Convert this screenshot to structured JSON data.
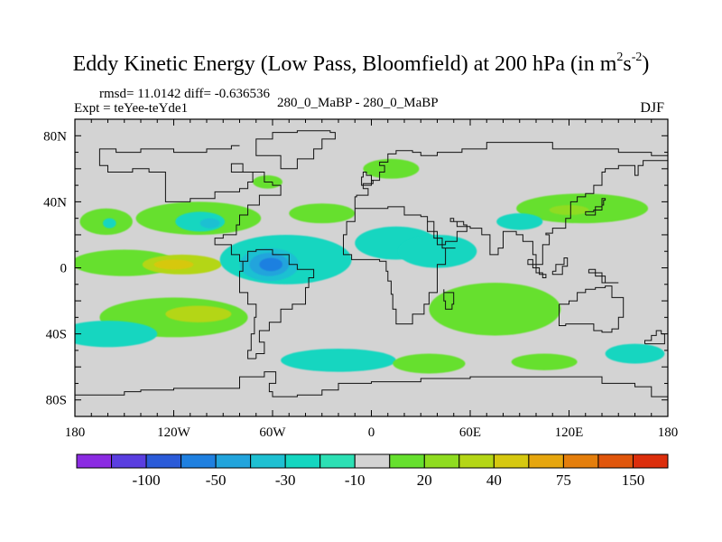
{
  "chart_data": {
    "type": "heatmap",
    "title_main": "Eddy Kinetic Energy (Low Pass, Bloomfield) at 200 hPa (in m",
    "title_unit_sup1": "2",
    "title_unit_mid": "s",
    "title_unit_sup2": "-2",
    "title_tail": ")",
    "rmsd_text": "rmsd= 11.0142 diff= -0.636536",
    "expt_text": "Expt = teYee-teYde1",
    "center_text": "280_0_MaBP - 280_0_MaBP",
    "season_text": "DJF",
    "x_ticks": [
      {
        "label": "180",
        "value": -180
      },
      {
        "label": "120W",
        "value": -120
      },
      {
        "label": "60W",
        "value": -60
      },
      {
        "label": "0",
        "value": 0
      },
      {
        "label": "60E",
        "value": 60
      },
      {
        "label": "120E",
        "value": 120
      },
      {
        "label": "180",
        "value": 180
      }
    ],
    "y_ticks": [
      {
        "label": "80N",
        "value": 80
      },
      {
        "label": "40N",
        "value": 40
      },
      {
        "label": "0",
        "value": 0
      },
      {
        "label": "40S",
        "value": -40
      },
      {
        "label": "80S",
        "value": -80
      }
    ],
    "xlim": [
      -180,
      180
    ],
    "ylim": [
      -90,
      90
    ],
    "background_color": "#d3d3d3",
    "colorbar": {
      "colors": [
        "#8b2be2",
        "#5a3ee0",
        "#2b5bd8",
        "#1f80e0",
        "#22a4dc",
        "#1ec0d2",
        "#14d6c0",
        "#2ce0b4",
        "#d3d3d3",
        "#66e02e",
        "#8fdc20",
        "#b4d616",
        "#d6c810",
        "#e6a60e",
        "#e47e0c",
        "#e0560c",
        "#dc2e0c"
      ],
      "labels": [
        {
          "label": "-100",
          "index": 2
        },
        {
          "label": "-50",
          "index": 4
        },
        {
          "label": "-30",
          "index": 6
        },
        {
          "label": "-10",
          "index": 8
        },
        {
          "label": "20",
          "index": 10
        },
        {
          "label": "40",
          "index": 12
        },
        {
          "label": "75",
          "index": 14
        },
        {
          "label": "150",
          "index": 16
        }
      ]
    },
    "regions": [
      {
        "name": "n-pacific-west-core",
        "lon": -161,
        "lat": 28,
        "rx": 16,
        "ry": 8,
        "color": "#66e02e"
      },
      {
        "name": "n-pacific-west-blue",
        "lon": -159,
        "lat": 27,
        "rx": 4,
        "ry": 3,
        "color": "#14d6c0"
      },
      {
        "name": "n-pacific-band",
        "lon": -105,
        "lat": 30,
        "rx": 38,
        "ry": 10,
        "color": "#66e02e"
      },
      {
        "name": "n-pacific-center",
        "lon": -104,
        "lat": 28,
        "rx": 15,
        "ry": 6,
        "color": "#14d6c0"
      },
      {
        "name": "n-pacific-center-blue",
        "lon": -98,
        "lat": 27,
        "rx": 6,
        "ry": 3,
        "color": "#1ec0d2"
      },
      {
        "name": "n-atlantic-green",
        "lon": -30,
        "lat": 33,
        "rx": 20,
        "ry": 6,
        "color": "#66e02e"
      },
      {
        "name": "n-atlantic-green-small",
        "lon": -63,
        "lat": 52,
        "rx": 9,
        "ry": 4,
        "color": "#66e02e"
      },
      {
        "name": "arctic-green",
        "lon": 12,
        "lat": 60,
        "rx": 17,
        "ry": 6,
        "color": "#66e02e"
      },
      {
        "name": "eq-west-green",
        "lon": -150,
        "lat": 3,
        "rx": 32,
        "ry": 8,
        "color": "#66e02e"
      },
      {
        "name": "eq-west-yellow",
        "lon": -115,
        "lat": 2,
        "rx": 24,
        "ry": 6,
        "color": "#b4d616"
      },
      {
        "name": "eq-west-yellow-deep",
        "lon": -120,
        "lat": 2,
        "rx": 12,
        "ry": 3,
        "color": "#d6c810"
      },
      {
        "name": "teal-band-south-america",
        "lon": -52,
        "lat": 5,
        "rx": 40,
        "ry": 15,
        "color": "#14d6c0"
      },
      {
        "name": "teal-band-africa",
        "lon": 15,
        "lat": 15,
        "rx": 25,
        "ry": 10,
        "color": "#14d6c0"
      },
      {
        "name": "teal-band-asia",
        "lon": 40,
        "lat": 10,
        "rx": 24,
        "ry": 10,
        "color": "#14d6c0"
      },
      {
        "name": "blue-core",
        "lon": -62,
        "lat": 2,
        "rx": 18,
        "ry": 10,
        "color": "#1ec0d2"
      },
      {
        "name": "blue-core-inner",
        "lon": -62,
        "lat": 2,
        "rx": 12,
        "ry": 7,
        "color": "#22a4dc"
      },
      {
        "name": "blue-core-deep",
        "lon": -61,
        "lat": 2,
        "rx": 7,
        "ry": 4,
        "color": "#1f80e0"
      },
      {
        "name": "e-asia-jet",
        "lon": 128,
        "lat": 36,
        "rx": 40,
        "ry": 9,
        "color": "#66e02e"
      },
      {
        "name": "e-asia-jet-core",
        "lon": 120,
        "lat": 35,
        "rx": 12,
        "ry": 3,
        "color": "#8fdc20"
      },
      {
        "name": "e-asia-teal",
        "lon": 90,
        "lat": 28,
        "rx": 14,
        "ry": 5,
        "color": "#14d6c0"
      },
      {
        "name": "indian-ocean-green",
        "lon": 75,
        "lat": -25,
        "rx": 40,
        "ry": 16,
        "color": "#66e02e"
      },
      {
        "name": "s-pacific-green",
        "lon": -120,
        "lat": -30,
        "rx": 45,
        "ry": 12,
        "color": "#66e02e"
      },
      {
        "name": "s-pacific-yellow",
        "lon": -105,
        "lat": -28,
        "rx": 20,
        "ry": 5,
        "color": "#b4d616"
      },
      {
        "name": "s-pacific-teal",
        "lon": -160,
        "lat": -40,
        "rx": 30,
        "ry": 8,
        "color": "#14d6c0"
      },
      {
        "name": "s-ocean-teal",
        "lon": -20,
        "lat": -56,
        "rx": 35,
        "ry": 7,
        "color": "#14d6c0"
      },
      {
        "name": "s-ocean-green-a",
        "lon": 35,
        "lat": -58,
        "rx": 22,
        "ry": 6,
        "color": "#66e02e"
      },
      {
        "name": "s-ocean-green-b",
        "lon": 105,
        "lat": -57,
        "rx": 20,
        "ry": 5,
        "color": "#66e02e"
      },
      {
        "name": "s-ocean-teal-east",
        "lon": 160,
        "lat": -52,
        "rx": 18,
        "ry": 6,
        "color": "#14d6c0"
      }
    ],
    "coastlines": [
      [
        [
          -95,
          44
        ],
        [
          -80,
          46
        ],
        [
          -75,
          48
        ],
        [
          -72,
          52
        ],
        [
          -78,
          58
        ],
        [
          -85,
          63
        ],
        [
          -65,
          58
        ],
        [
          -60,
          52
        ]
      ],
      [
        [
          -60,
          52
        ],
        [
          -55,
          50
        ],
        [
          -68,
          44
        ],
        [
          -75,
          38
        ],
        [
          -80,
          32
        ],
        [
          -82,
          26
        ],
        [
          -90,
          20
        ],
        [
          -95,
          18
        ],
        [
          -85,
          14
        ],
        [
          -80,
          8
        ],
        [
          -78,
          4
        ]
      ],
      [
        [
          -78,
          4
        ],
        [
          -80,
          -2
        ],
        [
          -80,
          -6
        ],
        [
          -75,
          -15
        ],
        [
          -70,
          -22
        ],
        [
          -71,
          -30
        ],
        [
          -73,
          -40
        ],
        [
          -75,
          -50
        ],
        [
          -70,
          -55
        ]
      ],
      [
        [
          -70,
          -55
        ],
        [
          -65,
          -52
        ],
        [
          -68,
          -45
        ],
        [
          -62,
          -38
        ],
        [
          -55,
          -33
        ],
        [
          -48,
          -25
        ],
        [
          -40,
          -22
        ],
        [
          -38,
          -12
        ],
        [
          -35,
          -6
        ],
        [
          -45,
          -1
        ],
        [
          -50,
          2
        ],
        [
          -60,
          8
        ],
        [
          -70,
          11
        ],
        [
          -75,
          10
        ],
        [
          -78,
          4
        ]
      ],
      [
        [
          -95,
          44
        ],
        [
          -110,
          42
        ],
        [
          -125,
          40
        ],
        [
          -125,
          48
        ],
        [
          -135,
          58
        ],
        [
          -145,
          60
        ],
        [
          -160,
          58
        ],
        [
          -165,
          62
        ],
        [
          -165,
          68
        ],
        [
          -155,
          72
        ],
        [
          -140,
          70
        ],
        [
          -120,
          72
        ],
        [
          -100,
          70
        ],
        [
          -85,
          72
        ],
        [
          -80,
          74
        ]
      ],
      [
        [
          -30,
          72
        ],
        [
          -22,
          78
        ],
        [
          -25,
          82
        ],
        [
          -45,
          83
        ],
        [
          -60,
          82
        ],
        [
          -70,
          78
        ],
        [
          -55,
          68
        ],
        [
          -45,
          60
        ],
        [
          -35,
          66
        ],
        [
          -30,
          72
        ]
      ],
      [
        [
          -10,
          36
        ],
        [
          -9,
          43
        ],
        [
          -2,
          44
        ],
        [
          -5,
          48
        ],
        [
          0,
          50
        ],
        [
          5,
          53
        ],
        [
          8,
          58
        ],
        [
          5,
          62
        ],
        [
          10,
          64
        ],
        [
          15,
          69
        ],
        [
          25,
          71
        ],
        [
          30,
          70
        ],
        [
          40,
          68
        ],
        [
          55,
          70
        ],
        [
          70,
          72
        ],
        [
          90,
          76
        ],
        [
          110,
          76
        ],
        [
          130,
          72
        ],
        [
          150,
          72
        ],
        [
          170,
          70
        ],
        [
          180,
          68
        ]
      ],
      [
        [
          -10,
          36
        ],
        [
          -15,
          28
        ],
        [
          -17,
          20
        ],
        [
          -17,
          14
        ],
        [
          -12,
          8
        ],
        [
          -5,
          5
        ],
        [
          5,
          5
        ],
        [
          9,
          4
        ],
        [
          10,
          -2
        ],
        [
          12,
          -8
        ],
        [
          13,
          -16
        ],
        [
          15,
          -25
        ],
        [
          18,
          -34
        ],
        [
          25,
          -34
        ],
        [
          32,
          -28
        ],
        [
          35,
          -22
        ],
        [
          40,
          -15
        ],
        [
          40,
          -5
        ],
        [
          45,
          2
        ],
        [
          51,
          12
        ],
        [
          43,
          12
        ],
        [
          38,
          18
        ],
        [
          34,
          28
        ],
        [
          30,
          31
        ],
        [
          20,
          32
        ],
        [
          10,
          37
        ],
        [
          0,
          36
        ],
        [
          -10,
          36
        ]
      ],
      [
        [
          34,
          28
        ],
        [
          40,
          22
        ],
        [
          45,
          14
        ],
        [
          52,
          16
        ],
        [
          58,
          22
        ],
        [
          56,
          26
        ],
        [
          50,
          28
        ],
        [
          48,
          30
        ],
        [
          52,
          28
        ],
        [
          60,
          25
        ],
        [
          67,
          24
        ],
        [
          72,
          20
        ],
        [
          77,
          8
        ],
        [
          80,
          12
        ],
        [
          80,
          16
        ],
        [
          88,
          22
        ],
        [
          92,
          20
        ],
        [
          98,
          16
        ],
        [
          100,
          8
        ],
        [
          104,
          2
        ],
        [
          104,
          10
        ],
        [
          108,
          14
        ],
        [
          106,
          20
        ],
        [
          110,
          21
        ],
        [
          118,
          24
        ],
        [
          121,
          30
        ],
        [
          121,
          38
        ],
        [
          125,
          40
        ],
        [
          130,
          43
        ],
        [
          135,
          45
        ],
        [
          140,
          50
        ],
        [
          142,
          58
        ],
        [
          150,
          60
        ],
        [
          160,
          62
        ],
        [
          162,
          56
        ],
        [
          165,
          62
        ],
        [
          180,
          65
        ]
      ],
      [
        [
          114,
          -22
        ],
        [
          114,
          -32
        ],
        [
          118,
          -35
        ],
        [
          124,
          -34
        ],
        [
          135,
          -34
        ],
        [
          140,
          -38
        ],
        [
          146,
          -39
        ],
        [
          150,
          -37
        ],
        [
          153,
          -30
        ],
        [
          153,
          -25
        ],
        [
          146,
          -18
        ],
        [
          142,
          -11
        ],
        [
          136,
          -12
        ],
        [
          130,
          -13
        ],
        [
          125,
          -15
        ],
        [
          120,
          -20
        ],
        [
          114,
          -22
        ]
      ],
      [
        [
          166,
          -46
        ],
        [
          170,
          -44
        ],
        [
          173,
          -41
        ],
        [
          176,
          -38
        ],
        [
          178,
          -40
        ],
        [
          174,
          -46
        ],
        [
          168,
          -46
        ],
        [
          166,
          -46
        ]
      ],
      [
        [
          -180,
          -78
        ],
        [
          -150,
          -77
        ],
        [
          -140,
          -75
        ],
        [
          -120,
          -74
        ],
        [
          -100,
          -73
        ],
        [
          -80,
          -73
        ],
        [
          -65,
          -66
        ],
        [
          -58,
          -63
        ],
        [
          -62,
          -70
        ],
        [
          -60,
          -75
        ],
        [
          -45,
          -78
        ],
        [
          -30,
          -77
        ],
        [
          -20,
          -74
        ],
        [
          0,
          -70
        ],
        [
          30,
          -69
        ],
        [
          60,
          -67
        ],
        [
          90,
          -66
        ],
        [
          120,
          -66
        ],
        [
          140,
          -66
        ],
        [
          160,
          -70
        ],
        [
          170,
          -72
        ],
        [
          170,
          -78
        ],
        [
          180,
          -78
        ]
      ],
      [
        [
          130,
          32
        ],
        [
          132,
          34
        ],
        [
          135,
          34
        ],
        [
          140,
          35
        ],
        [
          141,
          38
        ],
        [
          142,
          41
        ],
        [
          140,
          42
        ],
        [
          136,
          37
        ],
        [
          130,
          32
        ]
      ],
      [
        [
          -5,
          50
        ],
        [
          1,
          51
        ],
        [
          0,
          53
        ],
        [
          -3,
          56
        ],
        [
          -5,
          58
        ],
        [
          -6,
          55
        ],
        [
          -5,
          50
        ]
      ],
      [
        [
          95,
          5
        ],
        [
          100,
          2
        ],
        [
          104,
          -3
        ],
        [
          106,
          -6
        ],
        [
          102,
          -4
        ],
        [
          98,
          0
        ],
        [
          95,
          5
        ]
      ],
      [
        [
          110,
          -2
        ],
        [
          116,
          -4
        ],
        [
          119,
          1
        ],
        [
          117,
          6
        ],
        [
          112,
          2
        ],
        [
          110,
          -2
        ]
      ],
      [
        [
          132,
          -1
        ],
        [
          140,
          -3
        ],
        [
          150,
          -9
        ],
        [
          142,
          -9
        ],
        [
          136,
          -5
        ],
        [
          132,
          -1
        ]
      ],
      [
        [
          44,
          -13
        ],
        [
          50,
          -15
        ],
        [
          49,
          -22
        ],
        [
          45,
          -25
        ],
        [
          44,
          -20
        ],
        [
          44,
          -13
        ]
      ]
    ]
  }
}
